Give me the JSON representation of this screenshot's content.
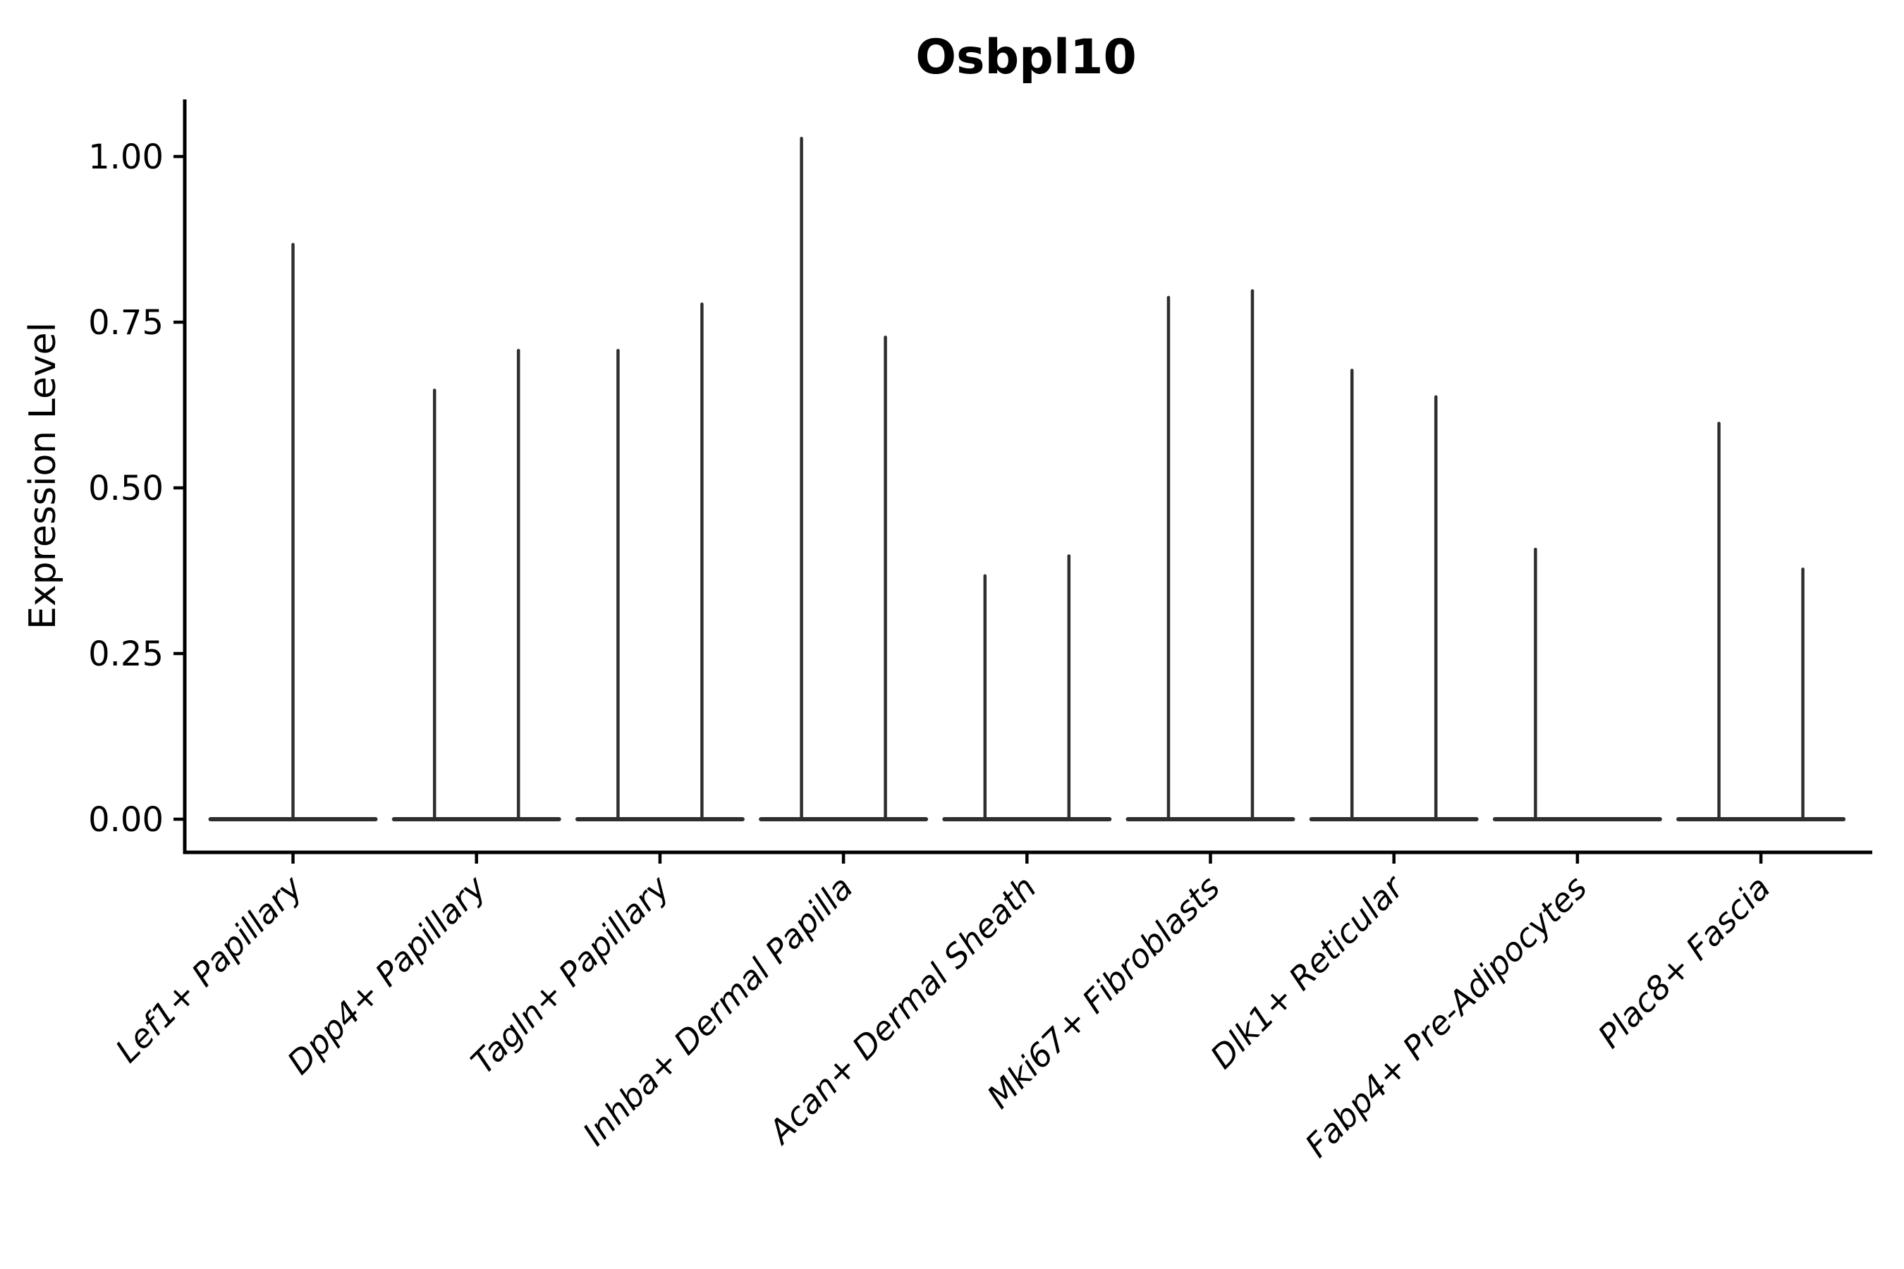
{
  "chart_data": {
    "type": "violin",
    "title": "Osbpl10",
    "ylabel": "Expression Level",
    "xlabel": "",
    "ylim": [
      -0.05,
      1.09
    ],
    "grid": false,
    "legend": "none",
    "ytick_labels": [
      "0.00",
      "0.25",
      "0.50",
      "0.75",
      "1.00"
    ],
    "yticks": [
      0.0,
      0.25,
      0.5,
      0.75,
      1.0
    ],
    "categories": [
      "Lef1+ Papillary",
      "Dpp4+ Papillary",
      "Tagln+ Papillary",
      "Inhba+ Dermal Papilla",
      "Acan+ Dermal Sheath",
      "Mki67+ Fibroblasts",
      "Dlk1+ Reticular",
      "Fabp4+ Pre-Adipocytes",
      "Plac8+ Fascia"
    ],
    "violins": [
      {
        "category": "Lef1+ Papillary",
        "groups": [
          {
            "position": "center",
            "max": 0.87
          }
        ]
      },
      {
        "category": "Dpp4+ Papillary",
        "groups": [
          {
            "position": "left",
            "max": 0.65
          },
          {
            "position": "right",
            "max": 0.71
          }
        ]
      },
      {
        "category": "Tagln+ Papillary",
        "groups": [
          {
            "position": "left",
            "max": 0.71
          },
          {
            "position": "right",
            "max": 0.78
          }
        ]
      },
      {
        "category": "Inhba+ Dermal Papilla",
        "groups": [
          {
            "position": "left",
            "max": 1.03
          },
          {
            "position": "right",
            "max": 0.73
          }
        ]
      },
      {
        "category": "Acan+ Dermal Sheath",
        "groups": [
          {
            "position": "left",
            "max": 0.37
          },
          {
            "position": "right",
            "max": 0.4
          }
        ]
      },
      {
        "category": "Mki67+ Fibroblasts",
        "groups": [
          {
            "position": "left",
            "max": 0.79
          },
          {
            "position": "right",
            "max": 0.8
          }
        ]
      },
      {
        "category": "Dlk1+ Reticular",
        "groups": [
          {
            "position": "left",
            "max": 0.68
          },
          {
            "position": "right",
            "max": 0.64
          }
        ]
      },
      {
        "category": "Fabp4+ Pre-Adipocytes",
        "groups": [
          {
            "position": "left",
            "max": 0.41
          },
          {
            "position": "right",
            "max": 0.0
          }
        ]
      },
      {
        "category": "Plac8+ Fascia",
        "groups": [
          {
            "position": "left",
            "max": 0.6
          },
          {
            "position": "right",
            "max": 0.38
          }
        ]
      }
    ],
    "violin_description": "Mostly-zero expression: each violin renders as a wide flat base at 0 plus a thin vertical spike up to the group maximum; categories with two dodged groups show two spikes, Lef1+ Papillary has a single centered violin, Fabp4+ Pre-Adipocytes right group has no spike.",
    "colors": {
      "violin": "#2e2e2e",
      "axis": "#000000",
      "text": "#000000",
      "background": "#ffffff"
    }
  }
}
